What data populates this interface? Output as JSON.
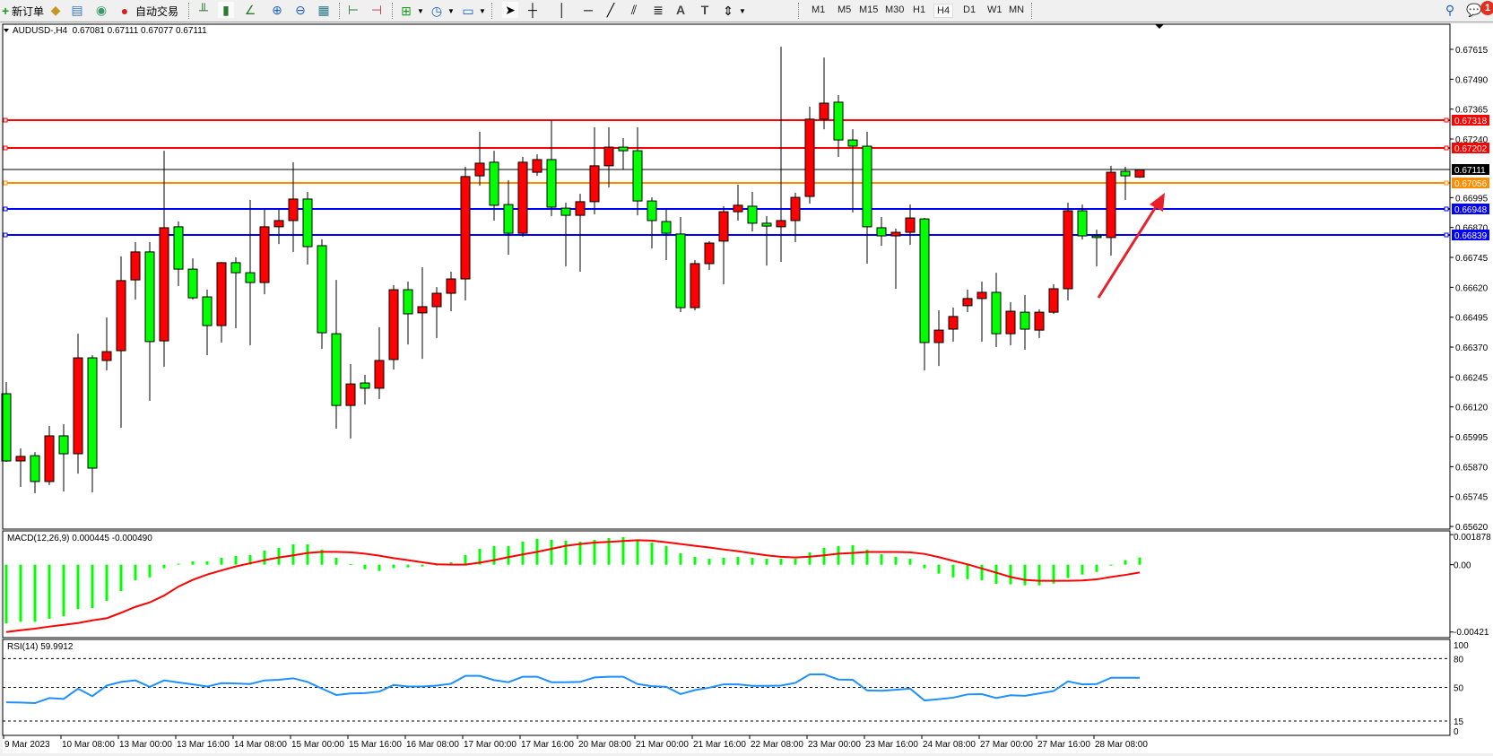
{
  "toolbar": {
    "new_order_label": "新订单",
    "auto_trading_label": "自动交易",
    "timeframes": [
      "M1",
      "M5",
      "M15",
      "M30",
      "H1",
      "H4",
      "D1",
      "W1",
      "MN"
    ],
    "active_timeframe": "H4",
    "notification_count": "1",
    "icons": [
      "new-order-icon",
      "market-watch-icon",
      "terminal-icon",
      "signals-icon",
      "auto-trading-icon",
      "bar-chart-icon",
      "candlestick-icon",
      "line-chart-icon",
      "zoom-in-icon",
      "zoom-out-icon",
      "tile-windows-icon",
      "auto-scroll-icon",
      "chart-shift-icon",
      "new-chart-icon",
      "periods-clock-icon",
      "indicators-icon",
      "cursor-icon",
      "crosshair-icon",
      "vertical-line-icon",
      "horizontal-line-icon",
      "trendline-icon",
      "channel-icon",
      "fibonacci-icon",
      "text-icon",
      "text-label-icon",
      "arrows-icon",
      "search-icon",
      "notifications-icon"
    ]
  },
  "chart_data": {
    "type": "candlestick",
    "symbol_header": "AUDUSD-,H4  0.67081 0.67111 0.67077 0.67111",
    "colors": {
      "bull": "#ff0000",
      "bear": "#00ff00",
      "outline": "#000000"
    },
    "ylim": [
      0.65609,
      0.6772
    ],
    "price_ticks": [
      "0.67615",
      "0.67490",
      "0.67365",
      "0.67240",
      "0.66995",
      "0.66870",
      "0.66745",
      "0.66620",
      "0.66495",
      "0.66370",
      "0.66245",
      "0.66120",
      "0.65995",
      "0.65870",
      "0.65745",
      "0.65620"
    ],
    "time_labels": [
      "9 Mar 2023",
      "10 Mar 08:00",
      "13 Mar 00:00",
      "13 Mar 16:00",
      "14 Mar 08:00",
      "15 Mar 00:00",
      "15 Mar 16:00",
      "16 Mar 08:00",
      "17 Mar 00:00",
      "17 Mar 16:00",
      "20 Mar 08:00",
      "21 Mar 00:00",
      "21 Mar 16:00",
      "22 Mar 08:00",
      "23 Mar 00:00",
      "23 Mar 16:00",
      "24 Mar 08:00",
      "27 Mar 00:00",
      "27 Mar 16:00",
      "28 Mar 08:00"
    ],
    "time_label_every_bars": 4,
    "ohlc_fields": [
      "open",
      "high",
      "low",
      "close"
    ],
    "candles": [
      [
        0.66175,
        0.66224,
        0.6589,
        0.65894
      ],
      [
        0.65894,
        0.65946,
        0.65785,
        0.65913
      ],
      [
        0.65916,
        0.65931,
        0.65759,
        0.65808
      ],
      [
        0.65808,
        0.6604,
        0.65793,
        0.65999
      ],
      [
        0.65999,
        0.66048,
        0.65766,
        0.65924
      ],
      [
        0.65924,
        0.66426,
        0.65841,
        0.66325
      ],
      [
        0.66325,
        0.66336,
        0.65763,
        0.65864
      ],
      [
        0.66314,
        0.66494,
        0.66273,
        0.66351
      ],
      [
        0.66355,
        0.66749,
        0.66033,
        0.66648
      ],
      [
        0.66651,
        0.66809,
        0.66569,
        0.66768
      ],
      [
        0.66768,
        0.66809,
        0.66145,
        0.66393
      ],
      [
        0.66396,
        0.67191,
        0.66288,
        0.66869
      ],
      [
        0.66873,
        0.66895,
        0.66625,
        0.66696
      ],
      [
        0.66696,
        0.66741,
        0.66569,
        0.66576
      ],
      [
        0.6658,
        0.6661,
        0.66336,
        0.6646
      ],
      [
        0.6646,
        0.66726,
        0.66389,
        0.66723
      ],
      [
        0.66723,
        0.66745,
        0.66449,
        0.66681
      ],
      [
        0.66681,
        0.66985,
        0.66378,
        0.6664
      ],
      [
        0.6664,
        0.66948,
        0.66591,
        0.66873
      ],
      [
        0.66873,
        0.66948,
        0.66801,
        0.66899
      ],
      [
        0.66899,
        0.67143,
        0.66768,
        0.66989
      ],
      [
        0.66989,
        0.67019,
        0.66715,
        0.6679
      ],
      [
        0.66794,
        0.6682,
        0.66363,
        0.6643
      ],
      [
        0.66426,
        0.66651,
        0.66029,
        0.66126
      ],
      [
        0.66126,
        0.66299,
        0.65988,
        0.66216
      ],
      [
        0.6622,
        0.66254,
        0.6613,
        0.66198
      ],
      [
        0.66198,
        0.66453,
        0.66153,
        0.66314
      ],
      [
        0.66318,
        0.66629,
        0.66276,
        0.6661
      ],
      [
        0.6661,
        0.66644,
        0.66381,
        0.66509
      ],
      [
        0.66513,
        0.66704,
        0.66321,
        0.66539
      ],
      [
        0.66539,
        0.66621,
        0.66408,
        0.66595
      ],
      [
        0.66595,
        0.66685,
        0.6652,
        0.66655
      ],
      [
        0.66655,
        0.67124,
        0.66565,
        0.67083
      ],
      [
        0.67086,
        0.6727,
        0.67045,
        0.67139
      ],
      [
        0.67143,
        0.67191,
        0.66899,
        0.66963
      ],
      [
        0.66966,
        0.67068,
        0.66756,
        0.66846
      ],
      [
        0.66846,
        0.67165,
        0.66831,
        0.67143
      ],
      [
        0.67101,
        0.67176,
        0.67086,
        0.67154
      ],
      [
        0.67154,
        0.67319,
        0.66918,
        0.66955
      ],
      [
        0.66951,
        0.66974,
        0.66708,
        0.66921
      ],
      [
        0.66921,
        0.67011,
        0.66685,
        0.66978
      ],
      [
        0.66978,
        0.67289,
        0.66925,
        0.67128
      ],
      [
        0.67128,
        0.67289,
        0.67038,
        0.67206
      ],
      [
        0.67206,
        0.67244,
        0.67113,
        0.67191
      ],
      [
        0.67191,
        0.67289,
        0.66921,
        0.66981
      ],
      [
        0.66981,
        0.66996,
        0.66783,
        0.66899
      ],
      [
        0.66895,
        0.66948,
        0.66734,
        0.66846
      ],
      [
        0.66843,
        0.66914,
        0.66516,
        0.66535
      ],
      [
        0.66535,
        0.66734,
        0.66524,
        0.66719
      ],
      [
        0.66719,
        0.66813,
        0.66693,
        0.66805
      ],
      [
        0.66813,
        0.66959,
        0.66633,
        0.66936
      ],
      [
        0.66936,
        0.67049,
        0.66899,
        0.66963
      ],
      [
        0.66959,
        0.67019,
        0.66854,
        0.66888
      ],
      [
        0.66888,
        0.66918,
        0.66711,
        0.66876
      ],
      [
        0.66873,
        0.67626,
        0.66726,
        0.66899
      ],
      [
        0.66899,
        0.67015,
        0.66809,
        0.66996
      ],
      [
        0.67,
        0.67375,
        0.6697,
        0.67323
      ],
      [
        0.67323,
        0.67581,
        0.67281,
        0.6739
      ],
      [
        0.67394,
        0.67424,
        0.67165,
        0.67236
      ],
      [
        0.67236,
        0.67281,
        0.66933,
        0.6721
      ],
      [
        0.6721,
        0.6727,
        0.66719,
        0.66873
      ],
      [
        0.66869,
        0.66914,
        0.66794,
        0.66835
      ],
      [
        0.66835,
        0.66865,
        0.66614,
        0.6685
      ],
      [
        0.6685,
        0.66966,
        0.66798,
        0.6691
      ],
      [
        0.66906,
        0.6691,
        0.66273,
        0.66389
      ],
      [
        0.66389,
        0.66524,
        0.66291,
        0.66441
      ],
      [
        0.66445,
        0.66535,
        0.66393,
        0.66498
      ],
      [
        0.66543,
        0.6661,
        0.66516,
        0.66573
      ],
      [
        0.66573,
        0.66644,
        0.66393,
        0.66599
      ],
      [
        0.66599,
        0.66681,
        0.6637,
        0.66426
      ],
      [
        0.66426,
        0.66558,
        0.66378,
        0.6652
      ],
      [
        0.66516,
        0.66588,
        0.66359,
        0.66445
      ],
      [
        0.66441,
        0.66528,
        0.66408,
        0.66516
      ],
      [
        0.66516,
        0.66633,
        0.66509,
        0.66614
      ],
      [
        0.66614,
        0.66974,
        0.66565,
        0.6694
      ],
      [
        0.6694,
        0.66966,
        0.6682,
        0.66835
      ],
      [
        0.66835,
        0.66861,
        0.66708,
        0.66828
      ],
      [
        0.66828,
        0.67128,
        0.66753,
        0.67101
      ],
      [
        0.67105,
        0.67124,
        0.66985,
        0.67086
      ],
      [
        0.67081,
        0.67111,
        0.67077,
        0.67111
      ]
    ],
    "current_price": {
      "value": 0.67111,
      "label": "0.67111",
      "color": "#000000"
    },
    "levels": [
      {
        "value": 0.67318,
        "label": "0.67318",
        "color": "#ff0000"
      },
      {
        "value": 0.67202,
        "label": "0.67202",
        "color": "#ff0000"
      },
      {
        "value": 0.67056,
        "label": "0.67056",
        "color": "#ff8c00"
      },
      {
        "value": 0.66948,
        "label": "0.66948",
        "color": "#0000ff"
      },
      {
        "value": 0.66839,
        "label": "0.66839",
        "color": "#0000ff"
      }
    ],
    "annotation_arrow": {
      "color": "#e8202a",
      "direction": "up-right"
    },
    "macd": {
      "label": "MACD(12,26,9) 0.000445 -0.000490",
      "ylim": [
        -0.00456,
        0.00211
      ],
      "tick_labels": [
        {
          "value": 0.001878,
          "label": "0.001878"
        },
        {
          "value": 0,
          "label": "0.00"
        },
        {
          "value": -0.00421,
          "label": "-0.00421"
        }
      ],
      "hist_color": "#00ff00",
      "signal_color": "#ff0000",
      "histogram": [
        -0.00367,
        -0.00357,
        -0.00357,
        -0.00338,
        -0.00322,
        -0.00277,
        -0.00271,
        -0.00226,
        -0.00165,
        -0.00097,
        -0.00079,
        -0.00022,
        6e-05,
        0.00021,
        0.00021,
        0.00043,
        0.00054,
        0.0006,
        0.00088,
        0.00105,
        0.00127,
        0.00127,
        0.00094,
        0.00043,
        4e-05,
        -0.00028,
        -0.00039,
        -0.00021,
        -0.00017,
        -0.00011,
        0.0,
        0.00015,
        0.0006,
        0.00099,
        0.00116,
        0.00116,
        0.00144,
        0.00161,
        0.00155,
        0.0015,
        0.00144,
        0.00155,
        0.00166,
        0.00172,
        0.0015,
        0.00138,
        0.00116,
        0.00071,
        0.00049,
        0.00037,
        0.00043,
        0.00049,
        0.00043,
        0.00037,
        0.00037,
        0.00037,
        0.00077,
        0.00105,
        0.00116,
        0.00122,
        0.00094,
        0.00065,
        0.00049,
        0.00037,
        -0.00022,
        -0.00056,
        -0.00079,
        -0.0009,
        -0.00097,
        -0.0012,
        -0.00123,
        -0.00129,
        -0.00129,
        -0.00118,
        -0.00084,
        -0.00062,
        -0.00045,
        -4e-05,
        0.00028,
        0.00045
      ],
      "signal": [
        -0.00421,
        -0.0041,
        -0.004,
        -0.00387,
        -0.00376,
        -0.00365,
        -0.00348,
        -0.00335,
        -0.00301,
        -0.00264,
        -0.00236,
        -0.00193,
        -0.00137,
        -0.00095,
        -0.00062,
        -0.00036,
        -0.00011,
        9e-05,
        0.00028,
        0.00045,
        0.00058,
        0.00073,
        0.0008,
        0.0008,
        0.00077,
        0.00069,
        0.00056,
        0.00041,
        0.00028,
        0.00015,
        2e-05,
        0.0,
        0.0,
        0.00013,
        0.00028,
        0.00047,
        0.00064,
        0.0008,
        0.00099,
        0.00118,
        0.00129,
        0.00138,
        0.00142,
        0.00148,
        0.00153,
        0.0015,
        0.0014,
        0.00129,
        0.00118,
        0.00107,
        0.00095,
        0.00084,
        0.00071,
        0.00058,
        0.00049,
        0.00045,
        0.0005,
        0.00058,
        0.00069,
        0.00073,
        0.00079,
        0.00079,
        0.00079,
        0.00077,
        0.00067,
        0.00047,
        0.00024,
        2e-05,
        -0.00024,
        -0.0005,
        -0.00077,
        -0.00095,
        -0.00101,
        -0.00101,
        -0.00101,
        -0.00099,
        -0.00092,
        -0.00077,
        -0.00064,
        -0.00049
      ]
    },
    "rsi": {
      "label": "RSI(14) 59.9912",
      "ylim": [
        0,
        100
      ],
      "tick_labels": [
        "100",
        "80",
        "50",
        "15",
        "0"
      ],
      "levels": [
        80,
        50,
        15
      ],
      "color": "#1e90ff",
      "values": [
        34.5,
        34.2,
        33.6,
        38.9,
        38.0,
        48.7,
        40.8,
        51.9,
        55.7,
        57.3,
        50.6,
        57.3,
        55.1,
        53.2,
        50.9,
        54.4,
        54.1,
        53.5,
        57.3,
        57.9,
        59.5,
        55.7,
        48.7,
        42.1,
        43.7,
        44.0,
        45.6,
        52.5,
        50.9,
        50.9,
        51.9,
        53.8,
        62.0,
        62.0,
        57.6,
        55.4,
        61.1,
        61.1,
        55.4,
        55.4,
        55.7,
        60.4,
        61.1,
        61.1,
        53.5,
        51.3,
        50.6,
        43.0,
        47.2,
        49.7,
        53.2,
        53.2,
        51.6,
        51.6,
        51.9,
        54.7,
        63.6,
        63.6,
        58.2,
        57.9,
        46.8,
        46.5,
        47.5,
        48.7,
        36.4,
        37.7,
        39.3,
        42.7,
        43.0,
        38.9,
        41.8,
        41.2,
        43.7,
        46.2,
        56.3,
        53.2,
        53.5,
        60.1,
        60.1,
        59.9912
      ]
    }
  }
}
